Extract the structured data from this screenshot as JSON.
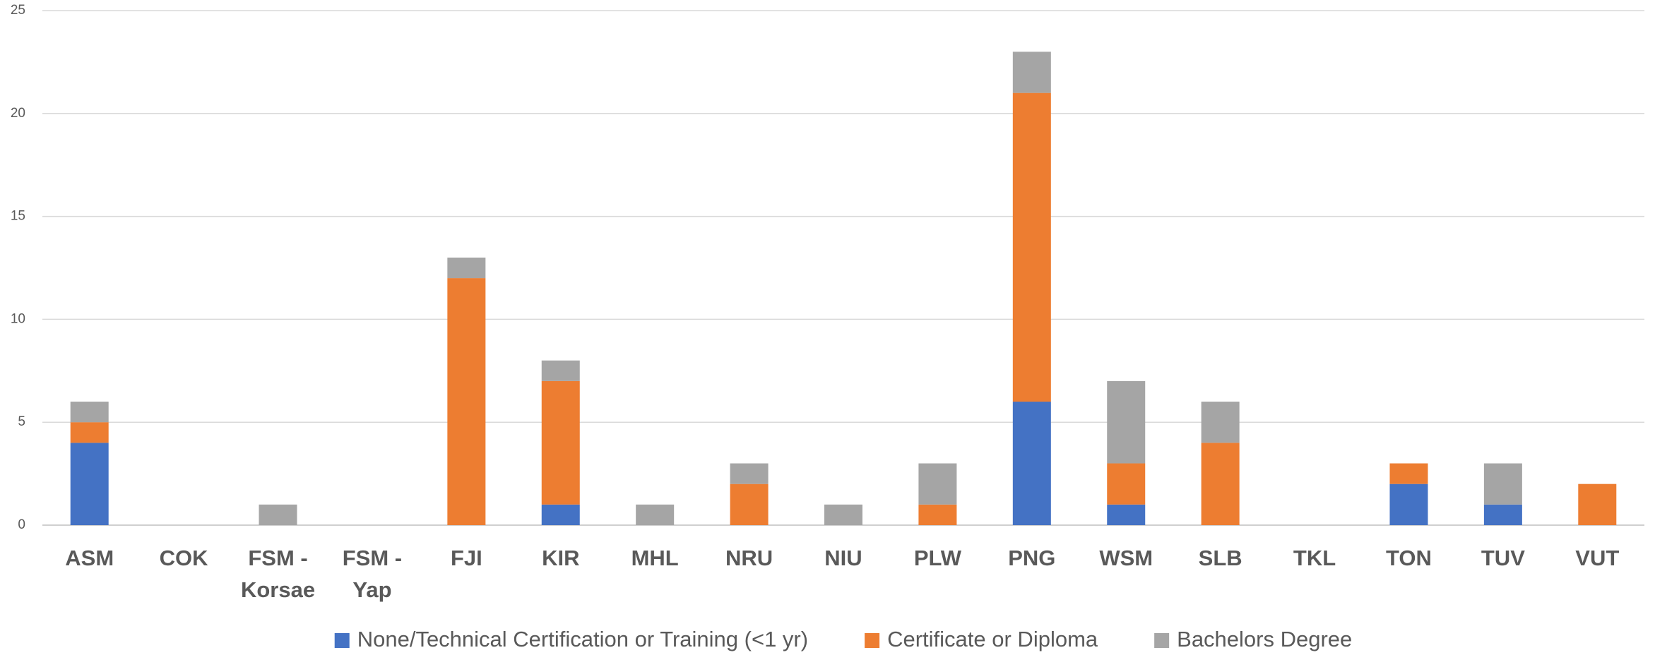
{
  "chart_data": {
    "type": "stacked_bar",
    "categories": [
      "ASM",
      "COK",
      "FSM - Korsae",
      "FSM - Yap",
      "FJI",
      "KIR",
      "MHL",
      "NRU",
      "NIU",
      "PLW",
      "PNG",
      "WSM",
      "SLB",
      "TKL",
      "TON",
      "TUV",
      "VUT"
    ],
    "series": [
      {
        "name": "None/Technical Certification or Training (<1 yr)",
        "color": "#4472c4",
        "values": [
          4,
          0,
          0,
          0,
          0,
          1,
          0,
          0,
          0,
          0,
          6,
          1,
          0,
          0,
          2,
          1,
          0
        ]
      },
      {
        "name": "Certificate or Diploma",
        "color": "#ed7d31",
        "values": [
          1,
          0,
          0,
          0,
          12,
          6,
          0,
          2,
          0,
          1,
          15,
          2,
          4,
          0,
          1,
          0,
          2
        ]
      },
      {
        "name": "Bachelors Degree",
        "color": "#a5a5a5",
        "values": [
          1,
          0,
          1,
          0,
          1,
          1,
          1,
          1,
          1,
          2,
          2,
          4,
          2,
          0,
          0,
          2,
          0
        ]
      }
    ],
    "ylim": [
      0,
      25
    ],
    "yticks": [
      0,
      5,
      10,
      15,
      20,
      25
    ],
    "grid": true,
    "legend": "bottom"
  }
}
